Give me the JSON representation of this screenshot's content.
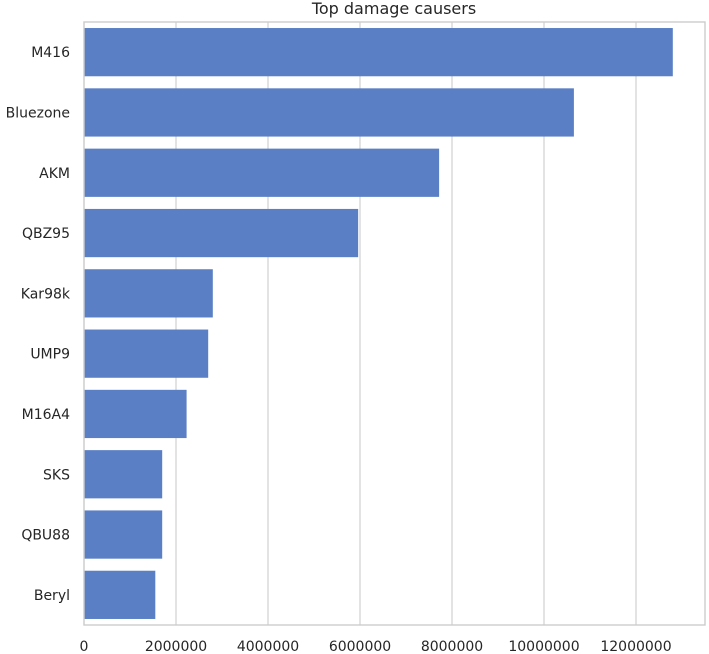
{
  "chart_data": {
    "type": "bar",
    "orientation": "horizontal",
    "title": "Top damage causers",
    "xlabel": "",
    "ylabel": "",
    "categories": [
      "M416",
      "Bluezone",
      "AKM",
      "QBZ95",
      "Kar98k",
      "UMP9",
      "M16A4",
      "SKS",
      "QBU88",
      "Beryl"
    ],
    "values": [
      12800000,
      10650000,
      7720000,
      5960000,
      2800000,
      2700000,
      2230000,
      1700000,
      1700000,
      1550000
    ],
    "xlim": [
      0,
      13500000
    ],
    "xticks": [
      0,
      2000000,
      4000000,
      6000000,
      8000000,
      10000000,
      12000000
    ],
    "xtick_labels": [
      "0",
      "2000000",
      "4000000",
      "6000000",
      "8000000",
      "10000000",
      "12000000"
    ],
    "grid": true,
    "bar_color": "#5a7fc4",
    "grid_color": "#cccccc",
    "text_color": "#262626"
  }
}
